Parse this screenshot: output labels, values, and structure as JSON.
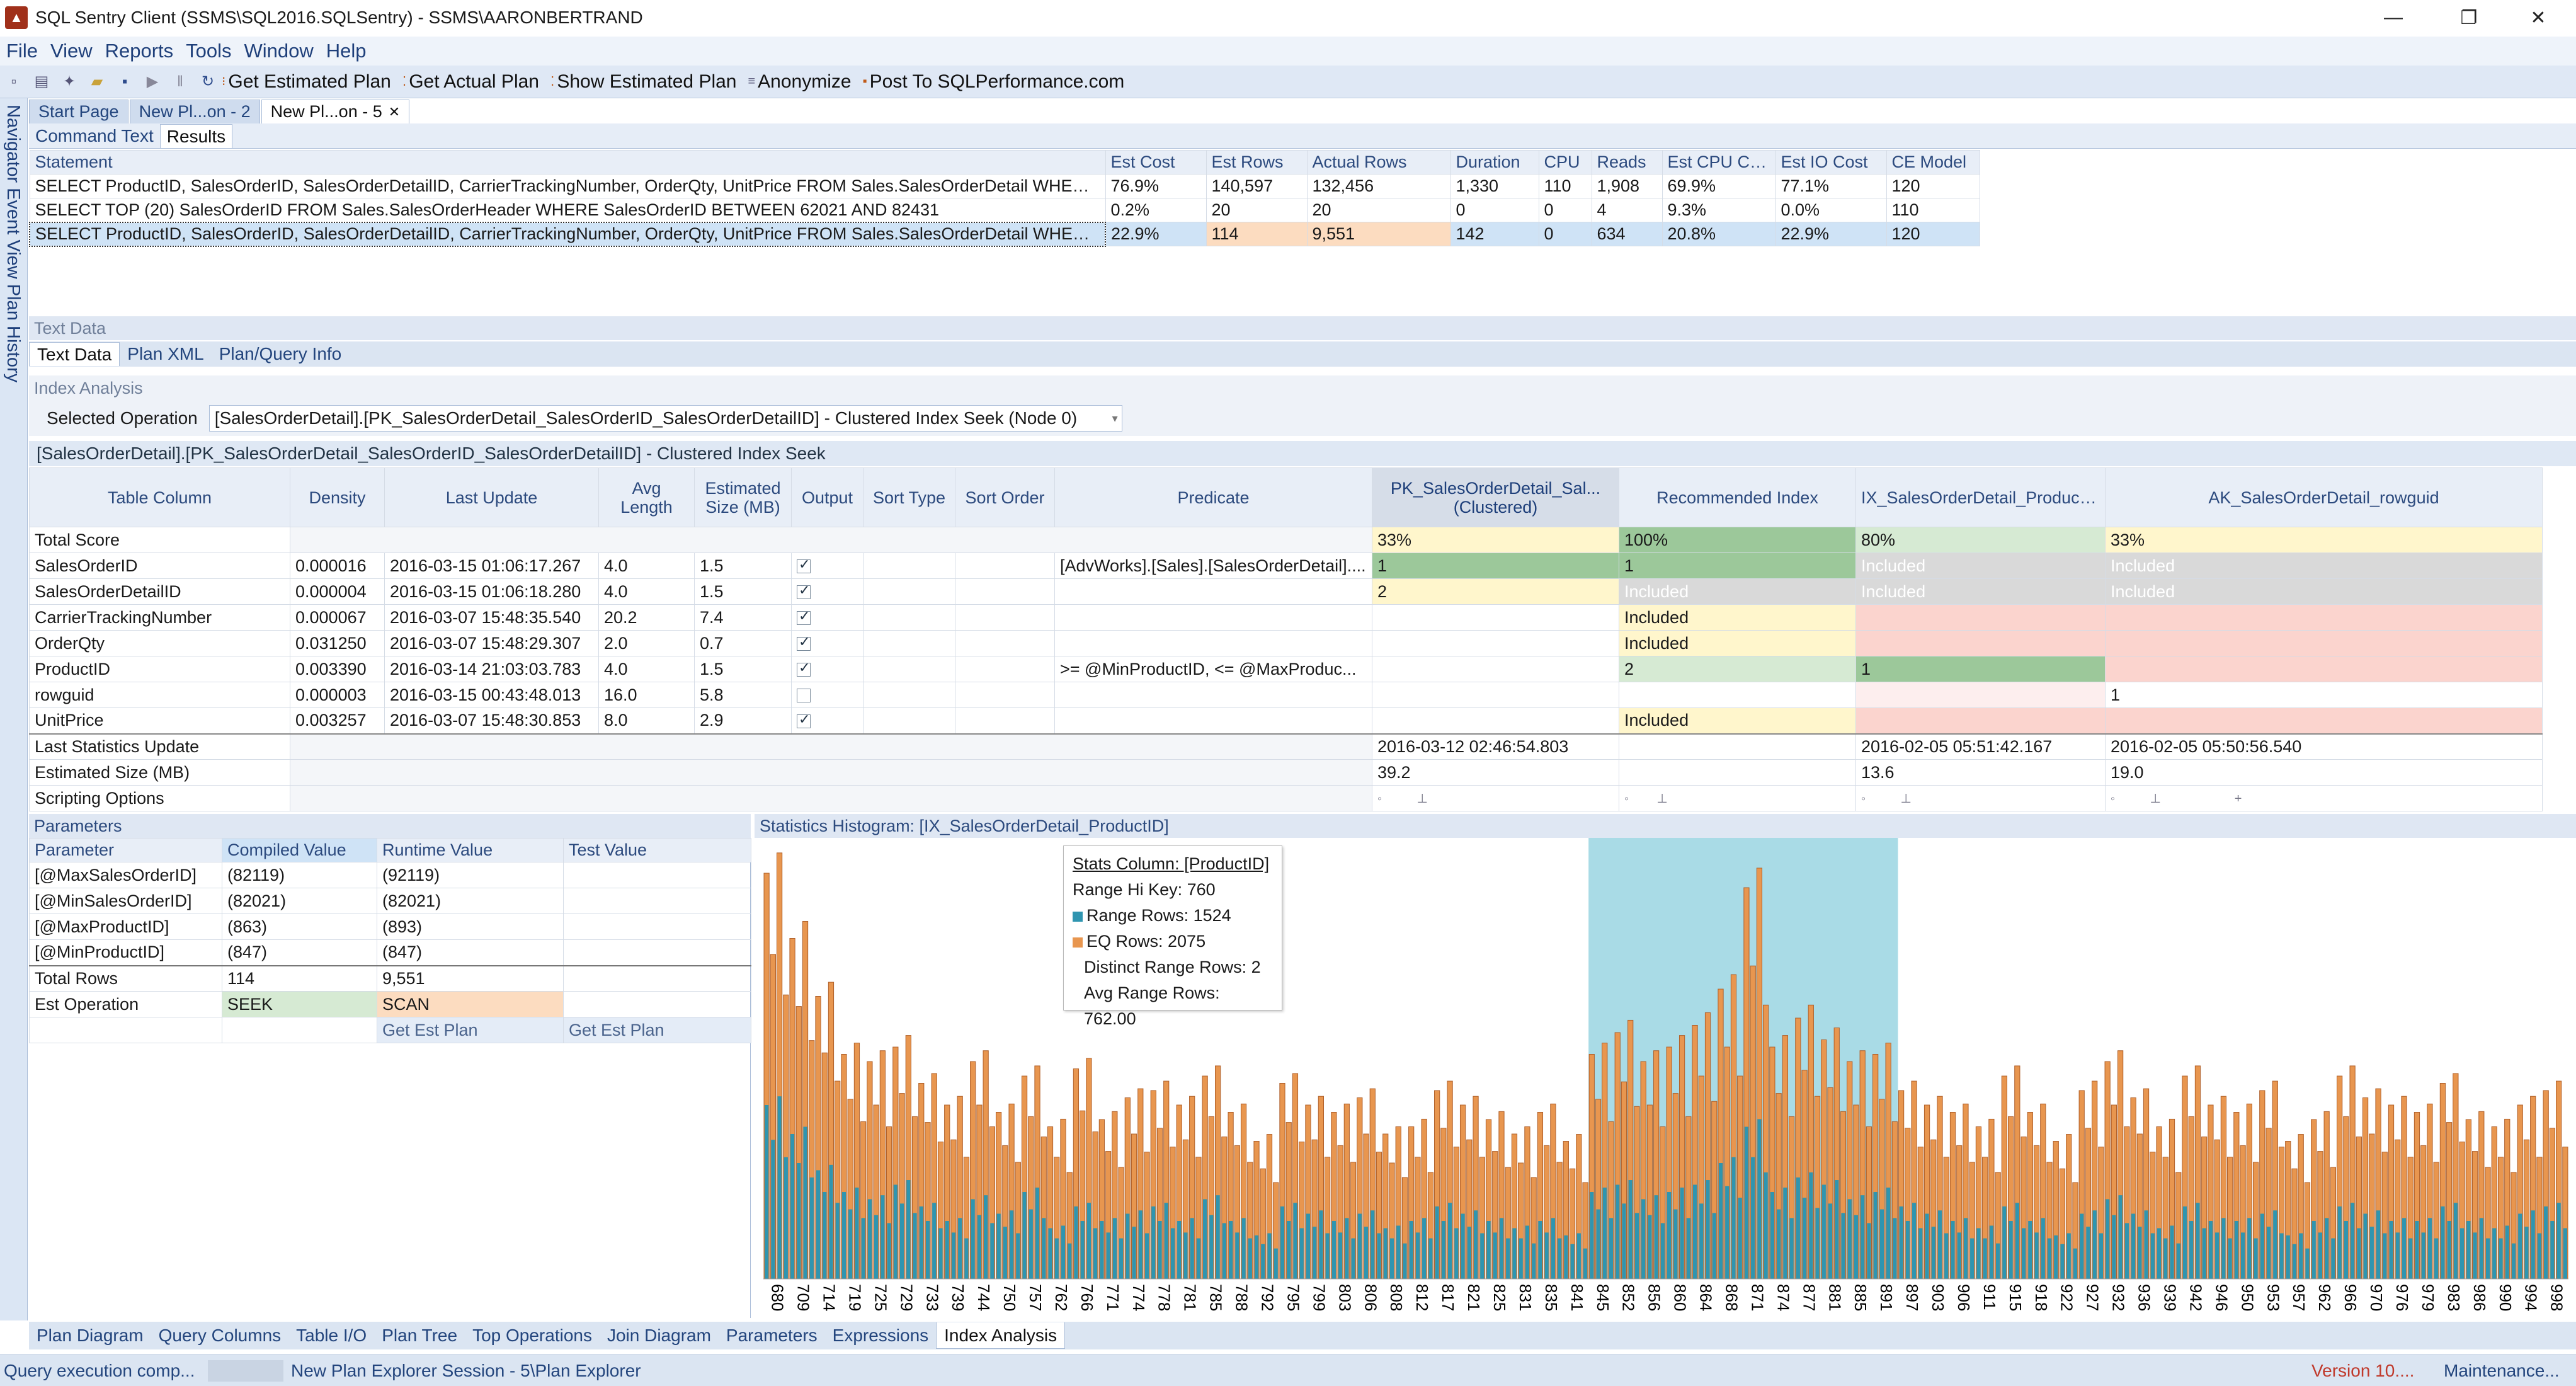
{
  "window": {
    "title": "SQL Sentry Client (SSMS\\SQL2016.SQLSentry) - SSMS\\AARONBERTRAND",
    "minimize": "—",
    "restore": "❐",
    "close": "✕"
  },
  "menu": [
    "File",
    "View",
    "Reports",
    "Tools",
    "Window",
    "Help"
  ],
  "toolbar": {
    "estimated": "Get Estimated Plan",
    "actual": "Get Actual Plan",
    "show_est": "Show Estimated Plan",
    "anonymize": "Anonymize",
    "post": "Post To SQLPerformance.com"
  },
  "left_rail": "Navigator  Event View  Plan History",
  "doc_tabs": [
    "Start Page",
    "New Pl...on - 2",
    "New Pl...on - 5"
  ],
  "sub_tabs": [
    "Command Text",
    "Results"
  ],
  "statements": {
    "headers": [
      "Statement",
      "Est Cost",
      "Est Rows",
      "Actual Rows",
      "Duration",
      "CPU",
      "Reads",
      "Est CPU Cost",
      "Est IO Cost",
      "CE Model"
    ],
    "rows": [
      [
        "SELECT ProductID, SalesOrderID, SalesOrderDetailID, CarrierTrackingNumber, OrderQty, UnitPrice FROM Sales.SalesOrderDetail WHERE Pr...",
        "76.9%",
        "140,597",
        "132,456",
        "1,330",
        "110",
        "1,908",
        "69.9%",
        "77.1%",
        "120"
      ],
      [
        "SELECT TOP (20) SalesOrderID FROM Sales.SalesOrderHeader WHERE SalesOrderID BETWEEN 62021 AND 82431",
        "0.2%",
        "20",
        "20",
        "0",
        "0",
        "4",
        "9.3%",
        "0.0%",
        "110"
      ],
      [
        "SELECT ProductID, SalesOrderID, SalesOrderDetailID, CarrierTrackingNumber, OrderQty, UnitPrice FROM Sales.SalesOrderDetail WHERE Pr...",
        "22.9%",
        "114",
        "9,551",
        "142",
        "0",
        "634",
        "20.8%",
        "22.9%",
        "120"
      ]
    ]
  },
  "text_data_header": "Text Data",
  "text_tabs": [
    "Text Data",
    "Plan XML",
    "Plan/Query Info"
  ],
  "index_analysis": {
    "header": "Index Analysis",
    "selected_label": "Selected Operation",
    "selected_value": "[SalesOrderDetail].[PK_SalesOrderDetail_SalesOrderID_SalesOrderDetailID] - Clustered Index Seek (Node 0)",
    "op_title": "[SalesOrderDetail].[PK_SalesOrderDetail_SalesOrderID_SalesOrderDetailID] - Clustered Index Seek",
    "headers": [
      "Table Column",
      "Density",
      "Last Update",
      "Avg Length",
      "Estimated Size (MB)",
      "Output",
      "Sort Type",
      "Sort Order",
      "Predicate",
      "PK_SalesOrderDetail_Sal... (Clustered)",
      "Recommended Index",
      "IX_SalesOrderDetail_ProductID",
      "AK_SalesOrderDetail_rowguid"
    ],
    "total_score": {
      "label": "Total Score",
      "scores": [
        "33%",
        "100%",
        "80%",
        "33%"
      ]
    },
    "rows": [
      {
        "col": "SalesOrderID",
        "density": "0.000016",
        "update": "2016-03-15 01:06:17.267",
        "avg": "4.0",
        "size": "1.5",
        "out": true,
        "pred": "[AdvWorks].[Sales].[SalesOrderDetail]....",
        "pk": "1",
        "rec": "1",
        "ix": "Included",
        "ak": "Included"
      },
      {
        "col": "SalesOrderDetailID",
        "density": "0.000004",
        "update": "2016-03-15 01:06:18.280",
        "avg": "4.0",
        "size": "1.5",
        "out": true,
        "pred": "",
        "pk": "2",
        "rec": "Included",
        "ix": "Included",
        "ak": "Included"
      },
      {
        "col": "CarrierTrackingNumber",
        "density": "0.000067",
        "update": "2016-03-07 15:48:35.540",
        "avg": "20.2",
        "size": "7.4",
        "out": true,
        "pred": "",
        "pk": "",
        "rec": "Included",
        "ix": "",
        "ak": ""
      },
      {
        "col": "OrderQty",
        "density": "0.031250",
        "update": "2016-03-07 15:48:29.307",
        "avg": "2.0",
        "size": "0.7",
        "out": true,
        "pred": "",
        "pk": "",
        "rec": "Included",
        "ix": "",
        "ak": ""
      },
      {
        "col": "ProductID",
        "density": "0.003390",
        "update": "2016-03-14 21:03:03.783",
        "avg": "4.0",
        "size": "1.5",
        "out": true,
        "pred": ">= @MinProductID, <= @MaxProduc...",
        "pk": "",
        "rec": "2",
        "ix": "1",
        "ak": ""
      },
      {
        "col": "rowguid",
        "density": "0.000003",
        "update": "2016-03-15 00:43:48.013",
        "avg": "16.0",
        "size": "5.8",
        "out": false,
        "pred": "",
        "pk": "",
        "rec": "",
        "ix": "",
        "ak": "1"
      },
      {
        "col": "UnitPrice",
        "density": "0.003257",
        "update": "2016-03-07 15:48:30.853",
        "avg": "8.0",
        "size": "2.9",
        "out": true,
        "pred": "",
        "pk": "",
        "rec": "Included",
        "ix": "",
        "ak": ""
      }
    ],
    "last_stats": {
      "label": "Last Statistics Update",
      "pk": "2016-03-12 02:46:54.803",
      "ix": "2016-02-05 05:51:42.167",
      "ak": "2016-02-05 05:50:56.540"
    },
    "est_size": {
      "label": "Estimated Size (MB)",
      "pk": "39.2",
      "ix": "13.6",
      "ak": "19.0"
    },
    "scripting": {
      "label": "Scripting Options"
    }
  },
  "parameters": {
    "header": "Parameters",
    "headers": [
      "Parameter",
      "Compiled Value",
      "Runtime Value",
      "Test Value"
    ],
    "rows": [
      [
        "[@MaxSalesOrderID]",
        "(82119)",
        "(92119)"
      ],
      [
        "[@MinSalesOrderID]",
        "(82021)",
        "(82021)"
      ],
      [
        "[@MaxProductID]",
        "(863)",
        "(893)"
      ],
      [
        "[@MinProductID]",
        "(847)",
        "(847)"
      ]
    ],
    "total_rows": {
      "label": "Total Rows",
      "compiled": "114",
      "runtime": "9,551"
    },
    "est_op": {
      "label": "Est Operation",
      "compiled": "SEEK",
      "runtime": "SCAN"
    },
    "get_est_plan": "Get Est Plan"
  },
  "histogram": {
    "header": "Statistics Histogram: [IX_SalesOrderDetail_ProductID]",
    "tooltip": {
      "title": "Stats Column: [ProductID]",
      "hi_key": "Range Hi Key: 760",
      "range_rows": "Range Rows: 1524",
      "eq_rows": "EQ Rows: 2075",
      "distinct": "Distinct Range Rows: 2",
      "avg": "Avg Range Rows: 762.00"
    },
    "colors": {
      "eq": "#e8964f",
      "range": "#2f95b0",
      "highlight": "#a9dbe6"
    }
  },
  "chart_data": {
    "type": "bar",
    "title": "Statistics Histogram: [IX_SalesOrderDetail_ProductID]",
    "xlabel": "",
    "ylabel": "",
    "categories": [
      "680",
      "709",
      "714",
      "719",
      "725",
      "729",
      "733",
      "739",
      "744",
      "750",
      "757",
      "762",
      "766",
      "771",
      "774",
      "778",
      "781",
      "785",
      "788",
      "792",
      "795",
      "799",
      "803",
      "806",
      "808",
      "812",
      "817",
      "821",
      "825",
      "831",
      "835",
      "841",
      "845",
      "852",
      "856",
      "860",
      "864",
      "868",
      "871",
      "874",
      "877",
      "881",
      "885",
      "891",
      "897",
      "903",
      "906",
      "911",
      "915",
      "918",
      "922",
      "927",
      "932",
      "936",
      "939",
      "942",
      "946",
      "950",
      "953",
      "957",
      "962",
      "966",
      "970",
      "976",
      "979",
      "983",
      "986",
      "990",
      "994",
      "998"
    ],
    "series": [
      {
        "name": "EQ Rows",
        "values": [
          560,
          470,
          390,
          310,
          300,
          320,
          270,
          240,
          300,
          230,
          280,
          210,
          290,
          220,
          250,
          260,
          240,
          280,
          230,
          190,
          270,
          240,
          230,
          250,
          200,
          210,
          260,
          240,
          220,
          200,
          230,
          190,
          310,
          340,
          300,
          320,
          350,
          400,
          540,
          320,
          360,
          330,
          300,
          310,
          260,
          240,
          230,
          210,
          280,
          230,
          190,
          260,
          300,
          250,
          210,
          280,
          240,
          230,
          260,
          190,
          220,
          280,
          250,
          240,
          230,
          270,
          220,
          210,
          240,
          260
        ]
      },
      {
        "name": "Range Rows",
        "values": [
          240,
          200,
          150,
          120,
          110,
          130,
          100,
          80,
          110,
          90,
          120,
          70,
          100,
          80,
          90,
          100,
          80,
          110,
          80,
          60,
          100,
          90,
          80,
          90,
          70,
          80,
          100,
          90,
          80,
          70,
          80,
          60,
          120,
          130,
          110,
          120,
          130,
          160,
          210,
          120,
          140,
          130,
          110,
          120,
          100,
          90,
          80,
          70,
          100,
          80,
          60,
          90,
          110,
          90,
          70,
          100,
          80,
          80,
          90,
          60,
          80,
          100,
          90,
          80,
          80,
          100,
          80,
          70,
          90,
          100
        ]
      }
    ],
    "highlight_range": [
      "845",
      "891"
    ]
  },
  "bottom_tabs": [
    "Plan Diagram",
    "Query Columns",
    "Table I/O",
    "Plan Tree",
    "Top Operations",
    "Join Diagram",
    "Parameters",
    "Expressions",
    "Index Analysis"
  ],
  "status": {
    "left": "Query execution comp...",
    "session": "New Plan Explorer Session - 5\\Plan Explorer",
    "version": "Version 10....",
    "maint": "Maintenance..."
  }
}
